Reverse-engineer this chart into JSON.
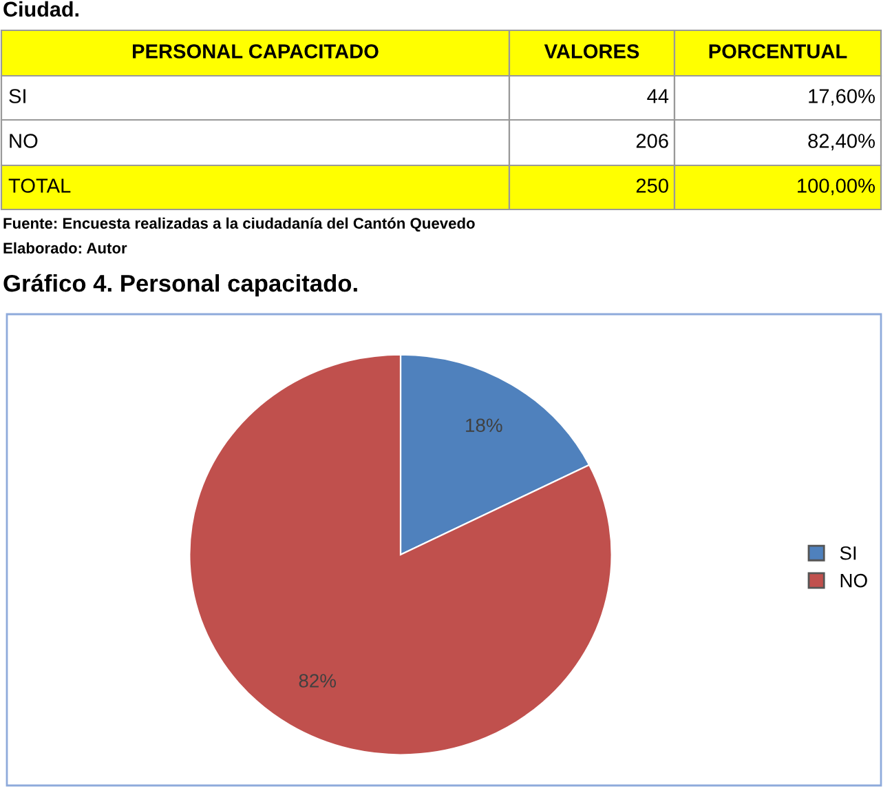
{
  "chart_data": {
    "type": "pie",
    "title": "Gráfico 4. Personal capacitado.",
    "categories": [
      "SI",
      "NO"
    ],
    "values": [
      17.6,
      82.4
    ],
    "colors": [
      "#4f81bd",
      "#c0504d"
    ],
    "value_labels": [
      "18%",
      "82%"
    ],
    "legend": "right",
    "annotations": [
      "Ciudad.",
      "PERSONAL CAPACITADO",
      "VALORES",
      "PORCENTUAL",
      "TOTAL",
      "250",
      "17,60%",
      "82,40%",
      "100,00%",
      "Fuente: Encuesta realizadas a la ciudadanía del Cantón Quevedo",
      "Elaborado: Autor",
      "SI",
      "NO",
      "44",
      "206"
    ]
  }
}
